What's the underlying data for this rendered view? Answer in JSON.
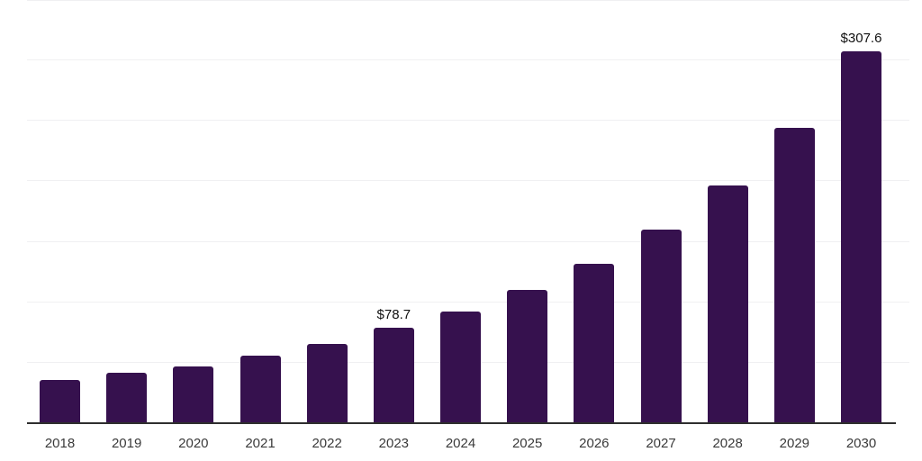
{
  "chart_data": {
    "type": "bar",
    "title": "",
    "xlabel": "",
    "ylabel": "",
    "categories": [
      "2018",
      "2019",
      "2020",
      "2021",
      "2022",
      "2023",
      "2024",
      "2025",
      "2026",
      "2027",
      "2028",
      "2029",
      "2030"
    ],
    "values": [
      36,
      41.5,
      47,
      55.5,
      65.5,
      78.7,
      92,
      110,
      132,
      160,
      196.5,
      244.5,
      307.6
    ],
    "data_labels": {
      "2023": "$78.7",
      "2030": "$307.6"
    },
    "ylim": [
      0,
      350
    ],
    "gridline_values": [
      50,
      100,
      150,
      200,
      250,
      300,
      350
    ],
    "grid": "horizontal",
    "legend": "none",
    "colors": {
      "bar": "#36114e",
      "axis_line": "#2e2e2e",
      "gridline": "#f0f0f2",
      "x_label": "#3a3a3a",
      "value_label": "#111111"
    }
  }
}
